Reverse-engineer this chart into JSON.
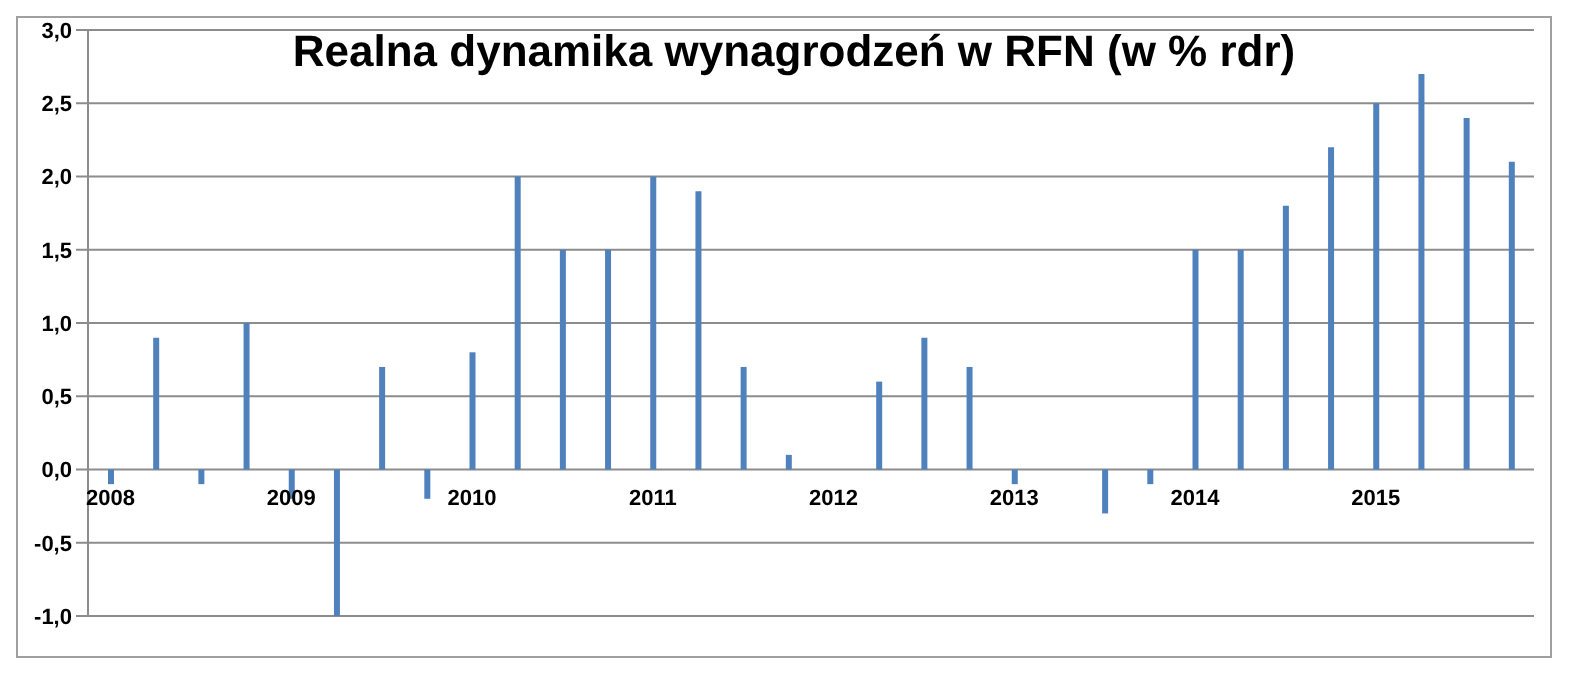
{
  "chart_data": {
    "type": "bar",
    "title": "Realna dynamika wynagrodzeń w RFN (w % rdr)",
    "categories": [
      "2008",
      null,
      null,
      null,
      "2009",
      null,
      null,
      null,
      "2010",
      null,
      null,
      null,
      "2011",
      null,
      null,
      null,
      "2012",
      null,
      null,
      null,
      "2013",
      null,
      null,
      null,
      "2014",
      null,
      null,
      null,
      "2015",
      null,
      null,
      null
    ],
    "values": [
      -0.1,
      0.9,
      -0.1,
      1.0,
      -0.2,
      -1.0,
      0.7,
      -0.2,
      0.8,
      2.0,
      1.5,
      1.5,
      2.0,
      1.9,
      0.7,
      0.1,
      0,
      0.6,
      0.9,
      0.7,
      -0.1,
      0,
      -0.3,
      -0.1,
      1.5,
      1.5,
      1.8,
      2.2,
      2.5,
      2.7,
      2.4,
      2.1
    ],
    "color": "#4f81bd",
    "ylim": [
      -1.0,
      3.0
    ],
    "yticks": [
      {
        "value": -1,
        "label": "-1,0"
      },
      {
        "value": -0.5,
        "label": "-0,5"
      },
      {
        "value": 0,
        "label": "0,0"
      },
      {
        "value": 0.5,
        "label": "0,5"
      },
      {
        "value": 1,
        "label": "1,0"
      },
      {
        "value": 1.5,
        "label": "1,5"
      },
      {
        "value": 2,
        "label": "2,0"
      },
      {
        "value": 2.5,
        "label": "2,5"
      },
      {
        "value": 3,
        "label": "3,0"
      }
    ],
    "grid": "y",
    "legend": false
  }
}
